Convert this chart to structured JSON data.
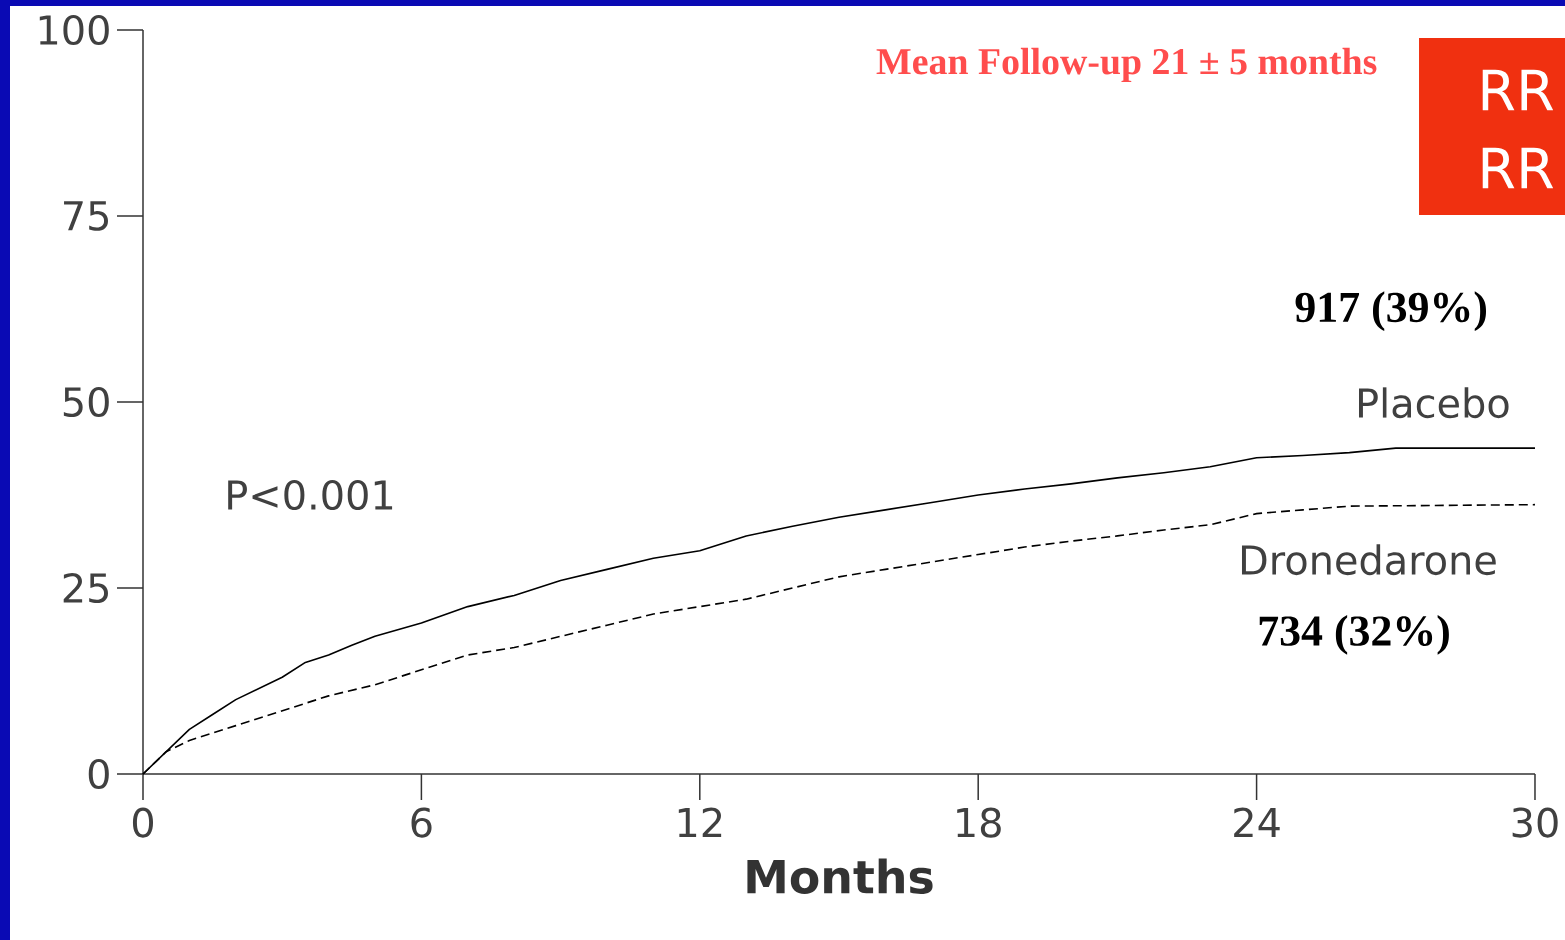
{
  "chart_data": {
    "type": "line",
    "xlabel": "Months",
    "xlim": [
      0,
      30
    ],
    "ylim": [
      0,
      100
    ],
    "xticks": [
      0,
      6,
      12,
      18,
      24,
      30
    ],
    "yticks": [
      0,
      25,
      50,
      75,
      100
    ],
    "series": [
      {
        "name": "Placebo",
        "color": "#000000",
        "line_style": "solid",
        "x": [
          0,
          0.5,
          1,
          1.5,
          2,
          2.5,
          3,
          3.5,
          4,
          4.5,
          5,
          6,
          7,
          8,
          9,
          10,
          11,
          12,
          13,
          14,
          15,
          16,
          17,
          18,
          19,
          20,
          21,
          22,
          23,
          24,
          25,
          26,
          27,
          30
        ],
        "values": [
          0,
          3,
          6,
          8,
          10,
          11.5,
          13,
          15,
          16,
          17.3,
          18.5,
          20.3,
          22.5,
          24,
          26,
          27.5,
          29,
          30,
          32,
          33.3,
          34.5,
          35.5,
          36.5,
          37.5,
          38.3,
          39,
          39.8,
          40.5,
          41.3,
          42.5,
          42.8,
          43.2,
          43.8,
          43.8
        ]
      },
      {
        "name": "Dronedarone",
        "color": "#000000",
        "line_style": "dashed",
        "x": [
          0,
          0.5,
          1,
          2,
          3,
          4,
          5,
          6,
          7,
          8,
          9,
          10,
          11,
          12,
          13,
          14,
          15,
          16,
          17,
          18,
          19,
          20,
          21,
          22,
          23,
          24,
          25,
          26,
          30
        ],
        "values": [
          0,
          3,
          4.5,
          6.5,
          8.5,
          10.5,
          12,
          14,
          16,
          17,
          18.5,
          20,
          21.5,
          22.5,
          23.5,
          25,
          26.5,
          27.5,
          28.5,
          29.5,
          30.5,
          31.3,
          32,
          32.8,
          33.5,
          35,
          35.5,
          36,
          36.2
        ]
      }
    ],
    "annotations": [
      "Mean Follow-up  21 ± 5 months",
      "917 (39%)",
      "P<0.001",
      "734 (32%)",
      "RR",
      "RR"
    ]
  }
}
